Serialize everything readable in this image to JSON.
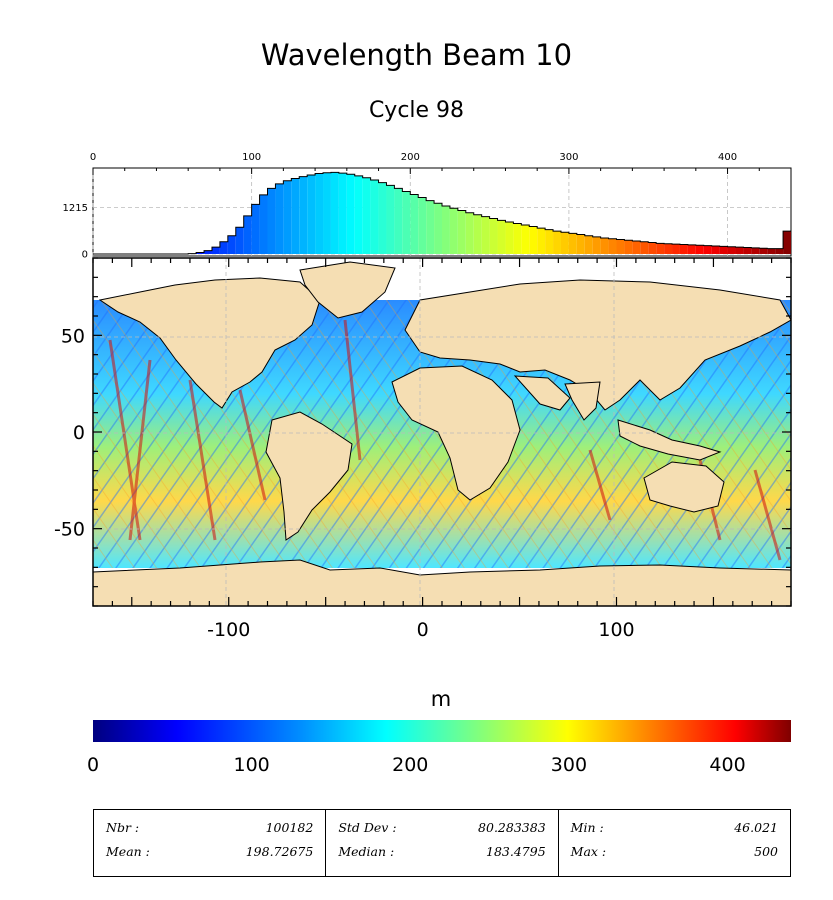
{
  "title": "Wavelength Beam 10",
  "subtitle": "Cycle 98",
  "colorbar": {
    "unit": "m",
    "ticks": [
      "0",
      "100",
      "200",
      "300",
      "400"
    ],
    "min": 0,
    "max": 440,
    "colormap": [
      "#00007f",
      "#0000ff",
      "#00bfff",
      "#00ffff",
      "#7fff7f",
      "#ffff00",
      "#ff7f00",
      "#ff0000",
      "#7f0000"
    ]
  },
  "chart_data": [
    {
      "type": "bar",
      "name": "histogram",
      "x_ticks": [
        "0",
        "100",
        "200",
        "300",
        "400"
      ],
      "xlim": [
        0,
        440
      ],
      "y_ticks": [
        "0",
        "1215"
      ],
      "bin_width": 5,
      "bin_starts": [
        0,
        5,
        10,
        15,
        20,
        25,
        30,
        35,
        40,
        45,
        50,
        55,
        60,
        65,
        70,
        75,
        80,
        85,
        90,
        95,
        100,
        105,
        110,
        115,
        120,
        125,
        130,
        135,
        140,
        145,
        150,
        155,
        160,
        165,
        170,
        175,
        180,
        185,
        190,
        195,
        200,
        205,
        210,
        215,
        220,
        225,
        230,
        235,
        240,
        245,
        250,
        255,
        260,
        265,
        270,
        275,
        280,
        285,
        290,
        295,
        300,
        305,
        310,
        315,
        320,
        325,
        330,
        335,
        340,
        345,
        350,
        355,
        360,
        365,
        370,
        375,
        380,
        385,
        390,
        395,
        400,
        405,
        410,
        415,
        420,
        425,
        430,
        435
      ],
      "values": [
        0,
        0,
        0,
        0,
        0,
        0,
        0,
        0,
        0,
        0,
        0,
        0,
        10,
        40,
        90,
        180,
        320,
        480,
        700,
        1000,
        1300,
        1550,
        1720,
        1840,
        1920,
        1980,
        2030,
        2070,
        2110,
        2130,
        2140,
        2120,
        2090,
        2050,
        2000,
        1940,
        1870,
        1800,
        1720,
        1640,
        1560,
        1480,
        1400,
        1330,
        1260,
        1200,
        1140,
        1080,
        1030,
        980,
        930,
        880,
        840,
        800,
        760,
        720,
        680,
        640,
        600,
        570,
        540,
        510,
        480,
        450,
        420,
        400,
        380,
        360,
        340,
        320,
        300,
        280,
        270,
        260,
        250,
        240,
        230,
        220,
        210,
        200,
        190,
        180,
        170,
        160,
        150,
        140,
        140,
        600
      ]
    },
    {
      "type": "heatmap",
      "name": "map",
      "x_ticks": [
        "-100",
        "0",
        "100"
      ],
      "y_ticks": [
        "50",
        "0",
        "-50"
      ],
      "xlim": [
        -170,
        190
      ],
      "ylim": [
        -90,
        90
      ]
    }
  ],
  "stats": {
    "nbr_label": "Nbr :",
    "nbr_value": "100182",
    "mean_label": "Mean :",
    "mean_value": "198.72675",
    "std_label": "Std Dev :",
    "std_value": "80.283383",
    "median_label": "Median :",
    "median_value": "183.4795",
    "min_label": "Min :",
    "min_value": "46.021",
    "max_label": "Max :",
    "max_value": "500"
  }
}
